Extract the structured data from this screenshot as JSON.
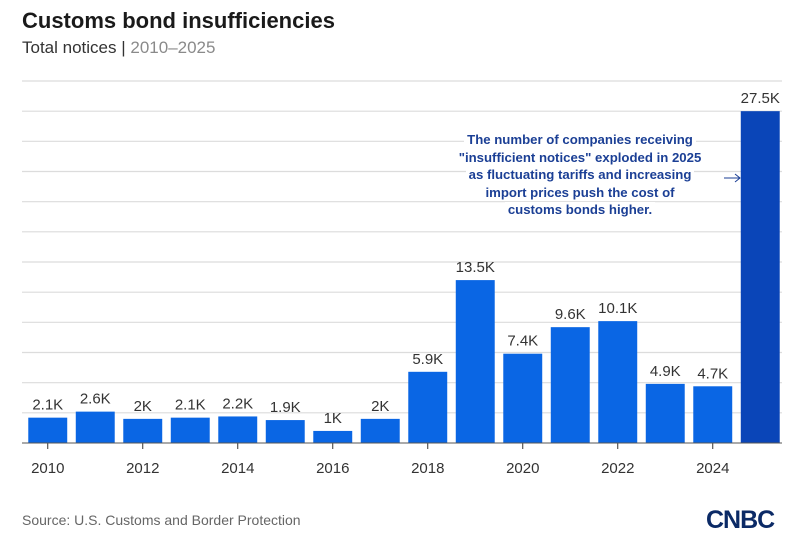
{
  "header": {
    "title": "Customs bond insufficiencies",
    "subtitle_main": "Total notices |",
    "subtitle_range": "2010–2025"
  },
  "footer": {
    "source": "Source: U.S. Customs and Border Protection",
    "logo": "CNBC"
  },
  "colors": {
    "bar": "#0a66e4",
    "bar_highlight": "#0a45b8",
    "grid": "#dcdcdc",
    "annotation": "#1b3f95"
  },
  "chart_data": {
    "type": "bar",
    "title": "Customs bond insufficiencies",
    "subtitle": "Total notices | 2010–2025",
    "xlabel": "",
    "ylabel": "Total notices",
    "categories": [
      "2010",
      "2011",
      "2012",
      "2013",
      "2014",
      "2015",
      "2016",
      "2017",
      "2018",
      "2019",
      "2020",
      "2021",
      "2022",
      "2023",
      "2024",
      "2025"
    ],
    "values": [
      2100,
      2600,
      2000,
      2100,
      2200,
      1900,
      1000,
      2000,
      5900,
      13500,
      7400,
      9600,
      10100,
      4900,
      4700,
      27500
    ],
    "data_labels": [
      "2.1K",
      "2.6K",
      "2K",
      "2.1K",
      "2.2K",
      "1.9K",
      "1K",
      "2K",
      "5.9K",
      "13.5K",
      "7.4K",
      "9.6K",
      "10.1K",
      "4.9K",
      "4.7K",
      "27.5K"
    ],
    "x_tick_labels": [
      "2010",
      "2012",
      "2014",
      "2016",
      "2018",
      "2020",
      "2022",
      "2024"
    ],
    "highlight_category": "2025",
    "ylim": [
      0,
      30000
    ],
    "grid_step": 2500,
    "grid": true,
    "y_tick_labels_shown": false,
    "annotation": {
      "lines": [
        "The number of companies receiving",
        "\"insufficient notices\" exploded in 2025",
        "as fluctuating tariffs and increasing",
        "import prices push the cost of",
        "customs bonds higher."
      ],
      "points_to": "2025"
    }
  }
}
